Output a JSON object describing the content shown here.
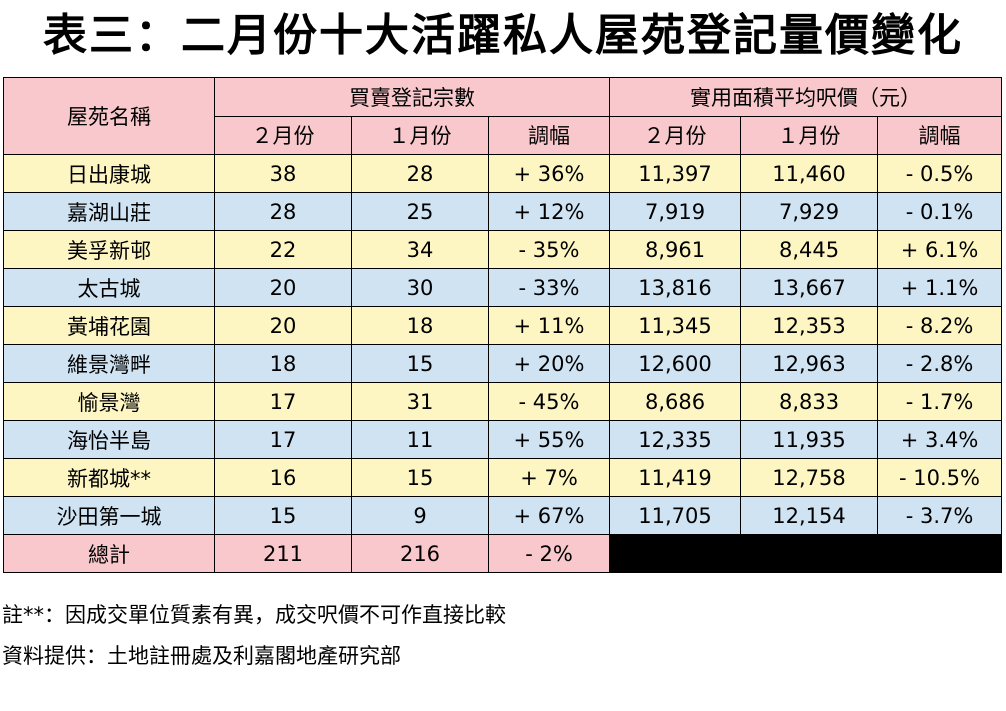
{
  "title": "表三：二月份十大活躍私人屋苑登記量價變化",
  "header": {
    "estate_name": "屋苑名稱",
    "transactions_group": "買賣登記宗數",
    "price_group": "實用面積平均呎價（元）",
    "feb": "２月份",
    "jan": "１月份",
    "change": "調幅"
  },
  "rows": [
    {
      "name": "日出康城",
      "tx_feb": "38",
      "tx_jan": "28",
      "tx_chg": "+ 36%",
      "p_feb": "11,397",
      "p_jan": "11,460",
      "p_chg": "- 0.5%"
    },
    {
      "name": "嘉湖山莊",
      "tx_feb": "28",
      "tx_jan": "25",
      "tx_chg": "+ 12%",
      "p_feb": "7,919",
      "p_jan": "7,929",
      "p_chg": "- 0.1%"
    },
    {
      "name": "美孚新邨",
      "tx_feb": "22",
      "tx_jan": "34",
      "tx_chg": "- 35%",
      "p_feb": "8,961",
      "p_jan": "8,445",
      "p_chg": "+ 6.1%"
    },
    {
      "name": "太古城",
      "tx_feb": "20",
      "tx_jan": "30",
      "tx_chg": "- 33%",
      "p_feb": "13,816",
      "p_jan": "13,667",
      "p_chg": "+ 1.1%"
    },
    {
      "name": "黃埔花園",
      "tx_feb": "20",
      "tx_jan": "18",
      "tx_chg": "+ 11%",
      "p_feb": "11,345",
      "p_jan": "12,353",
      "p_chg": "- 8.2%"
    },
    {
      "name": "維景灣畔",
      "tx_feb": "18",
      "tx_jan": "15",
      "tx_chg": "+ 20%",
      "p_feb": "12,600",
      "p_jan": "12,963",
      "p_chg": "- 2.8%"
    },
    {
      "name": "愉景灣",
      "tx_feb": "17",
      "tx_jan": "31",
      "tx_chg": "- 45%",
      "p_feb": "8,686",
      "p_jan": "8,833",
      "p_chg": "- 1.7%"
    },
    {
      "name": "海怡半島",
      "tx_feb": "17",
      "tx_jan": "11",
      "tx_chg": "+ 55%",
      "p_feb": "12,335",
      "p_jan": "11,935",
      "p_chg": "+ 3.4%"
    },
    {
      "name": "新都城**",
      "tx_feb": "16",
      "tx_jan": "15",
      "tx_chg": "+ 7%",
      "p_feb": "11,419",
      "p_jan": "12,758",
      "p_chg": "- 10.5%"
    },
    {
      "name": "沙田第一城",
      "tx_feb": "15",
      "tx_jan": "9",
      "tx_chg": "+ 67%",
      "p_feb": "11,705",
      "p_jan": "12,154",
      "p_chg": "- 3.7%"
    }
  ],
  "total": {
    "label": "總計",
    "tx_feb": "211",
    "tx_jan": "216",
    "tx_chg": "- 2%"
  },
  "notes": {
    "note1": "註**：因成交單位質素有異，成交呎價不可作直接比較",
    "note2": "資料提供：土地註冊處及利嘉閣地產研究部"
  },
  "colors": {
    "header_bg": "#f8c8cc",
    "row_yellow": "#fdf6c3",
    "row_blue": "#cfe3f3"
  }
}
